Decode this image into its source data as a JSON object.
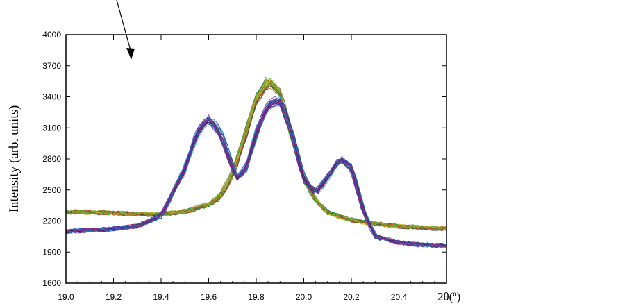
{
  "chart_data": {
    "type": "line",
    "title": "",
    "xlabel": "2θ(º)",
    "ylabel": "Intensity (arb. units)",
    "xlim": [
      19.0,
      20.6
    ],
    "ylim": [
      1600,
      4000
    ],
    "x_ticks": [
      19.0,
      19.2,
      19.4,
      19.6,
      19.8,
      20.0,
      20.2,
      20.4
    ],
    "x_tick_labels": [
      "19.0",
      "19.2",
      "19.4",
      "19.6",
      "19.8",
      "20.0",
      "20.2",
      "20.4"
    ],
    "y_ticks": [
      1600,
      1900,
      2200,
      2500,
      2800,
      3100,
      3400,
      3700,
      4000
    ],
    "y_tick_labels": [
      "1600",
      "1900",
      "2200",
      "2500",
      "2800",
      "3100",
      "3400",
      "3700",
      "4000"
    ],
    "grid": false,
    "colors": {
      "blue_group": [
        "#2a2a9a",
        "#1e3fd0",
        "#7a1e8a",
        "#1e8fd0",
        "#3a3a3a",
        "#b0206a",
        "#2e9ec9",
        "#4b2aa8"
      ],
      "green_group": [
        "#2e9e2e",
        "#d4c21e",
        "#c83a2a",
        "#6a6a2a",
        "#d07a1e",
        "#7ac81e",
        "#3a3a3a",
        "#1ea07a"
      ]
    },
    "series": [
      {
        "x": [
          19.0,
          19.1,
          19.2,
          19.3,
          19.4,
          19.5,
          19.55,
          19.6,
          19.65,
          19.7,
          19.72,
          19.76,
          19.8,
          19.85,
          19.9,
          19.95,
          20.0,
          20.05,
          20.1,
          20.15,
          20.2,
          20.25,
          20.3,
          20.4,
          20.5,
          20.6
        ],
        "values": [
          2100,
          2110,
          2125,
          2150,
          2250,
          2700,
          3050,
          3190,
          3050,
          2720,
          2600,
          2720,
          3050,
          3320,
          3370,
          3050,
          2600,
          2470,
          2620,
          2800,
          2720,
          2300,
          2050,
          1990,
          1970,
          1960
        ]
      },
      {
        "x": [
          19.0,
          19.1,
          19.2,
          19.3,
          19.4,
          19.5,
          19.6,
          19.65,
          19.7,
          19.75,
          19.8,
          19.85,
          19.9,
          19.95,
          20.0,
          20.05,
          20.1,
          20.2,
          20.3,
          20.4,
          20.5,
          20.6
        ],
        "values": [
          2290,
          2285,
          2275,
          2265,
          2265,
          2290,
          2360,
          2440,
          2640,
          3000,
          3380,
          3550,
          3440,
          3000,
          2600,
          2400,
          2280,
          2210,
          2170,
          2150,
          2135,
          2125
        ]
      }
    ]
  },
  "annotation": {
    "type": "arrow"
  }
}
